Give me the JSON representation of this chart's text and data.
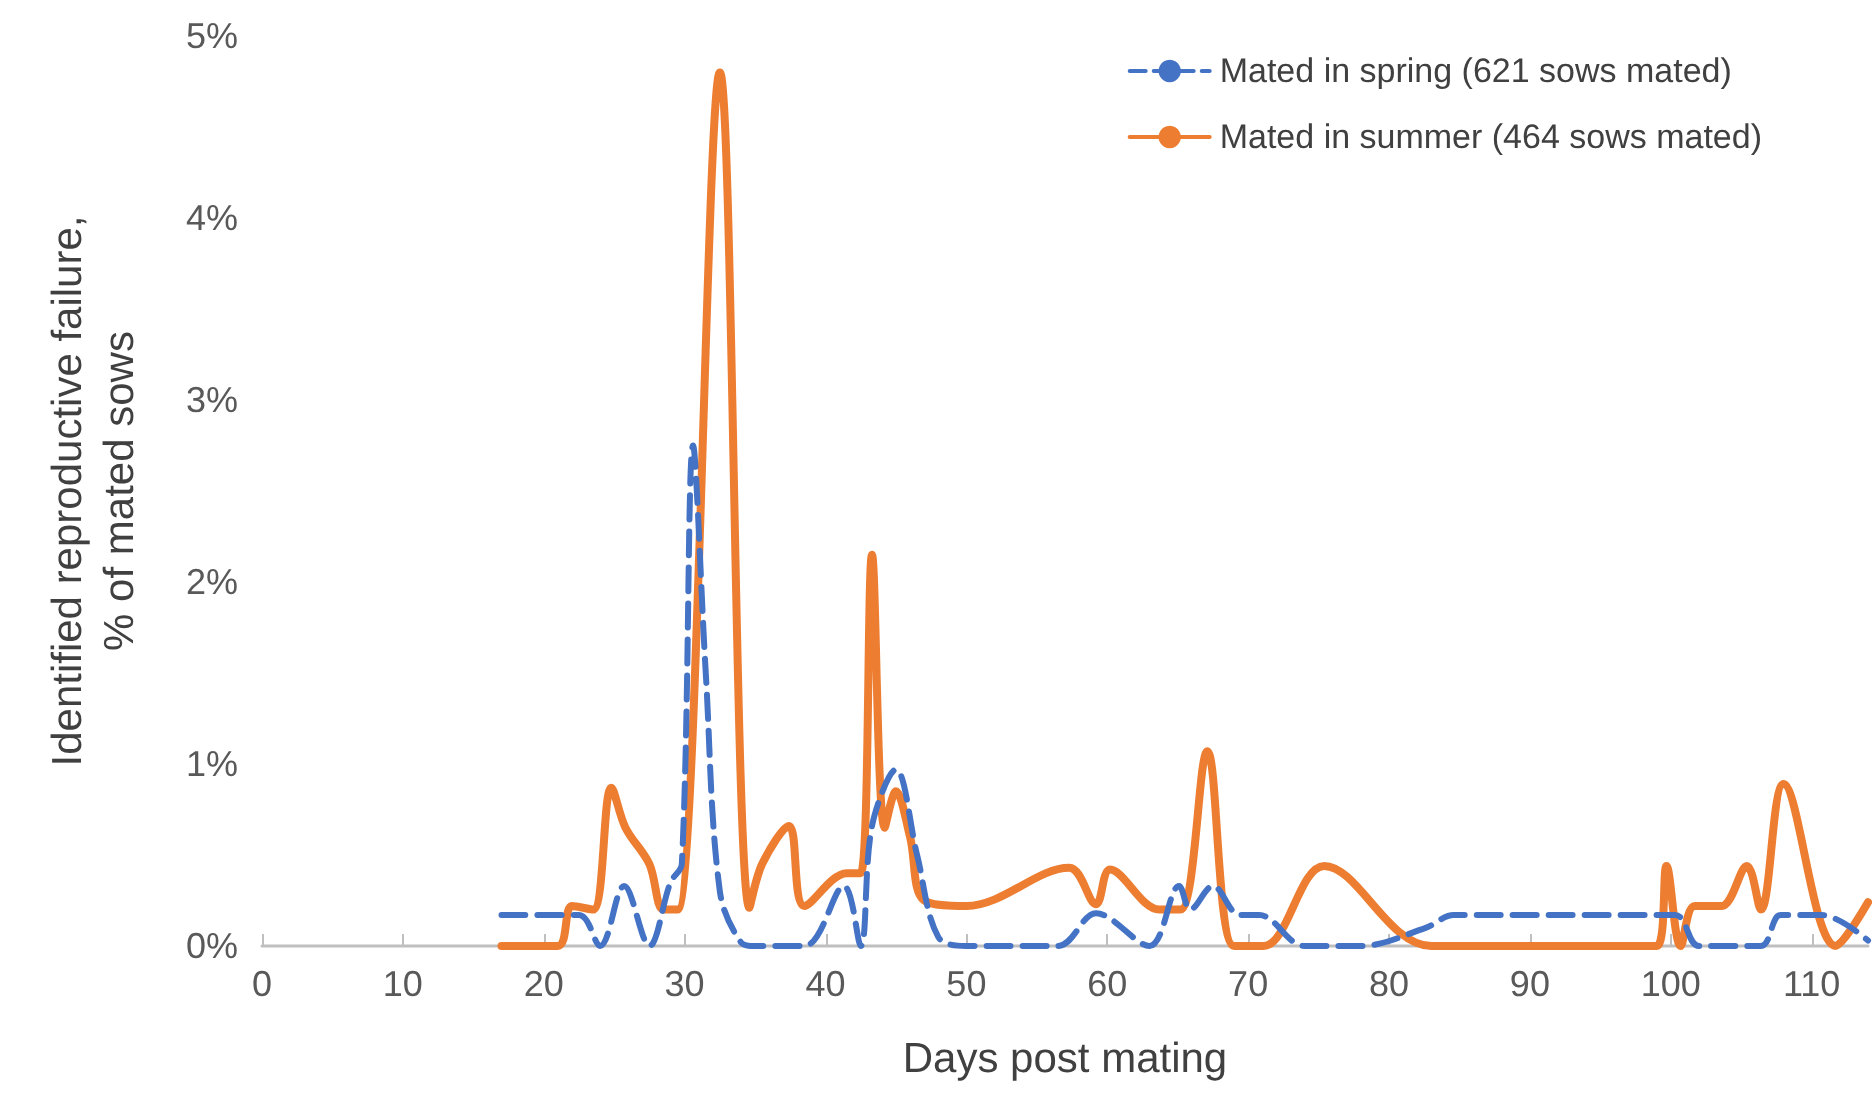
{
  "chart_data": {
    "type": "line",
    "xlabel": "Days post mating",
    "ylabel": "Identified reproductive failure,\n% of mated sows",
    "xlim": [
      0,
      114
    ],
    "xticks": [
      0,
      10,
      20,
      30,
      40,
      50,
      60,
      70,
      80,
      90,
      100,
      110
    ],
    "ylim": [
      0,
      5
    ],
    "yticks": [
      {
        "value": 0,
        "label": "0%"
      },
      {
        "value": 1,
        "label": "1%"
      },
      {
        "value": 2,
        "label": "2%"
      },
      {
        "value": 3,
        "label": "3%"
      },
      {
        "value": 4,
        "label": "4%"
      },
      {
        "value": 5,
        "label": "5%"
      }
    ],
    "grid": false,
    "legend": "top right",
    "marker": "none",
    "series": [
      {
        "name": "Mated in spring (621 sows mated)",
        "color": "#4472c4",
        "line_style": "dashed",
        "x": [
          17,
          22.5,
          24,
          25.7,
          27.5,
          29,
          29.8,
          30.6,
          31.5,
          32.5,
          34,
          35,
          38.5,
          41.3,
          42.5,
          43.3,
          45,
          46.5,
          48,
          50,
          56.5,
          59.2,
          63,
          65.1,
          65.9,
          67.5,
          69.4,
          70.8,
          74,
          78,
          82.6,
          84.6,
          100.3,
          102,
          106.4,
          107.8,
          110.7,
          114
        ],
        "values": [
          0.17,
          0.17,
          0,
          0.33,
          0,
          0.35,
          0.45,
          2.75,
          1.5,
          0.3,
          0.02,
          0,
          0,
          0.33,
          0,
          0.66,
          0.97,
          0.5,
          0.05,
          0,
          0,
          0.18,
          0,
          0.33,
          0.2,
          0.33,
          0.17,
          0.17,
          0,
          0,
          0.1,
          0.17,
          0.17,
          0,
          0,
          0.17,
          0.17,
          0.03
        ]
      },
      {
        "name": "Mated in summer (464 sows mated)",
        "color": "#ed7d31",
        "line_style": "solid",
        "x": [
          17,
          21,
          22,
          23.5,
          24.8,
          25.8,
          27.5,
          28.5,
          29.5,
          32.5,
          34.6,
          35.5,
          37.4,
          38.5,
          41.5,
          42.5,
          43.3,
          44.2,
          45,
          46,
          47,
          50,
          57.3,
          59.2,
          60.2,
          63.7,
          65.2,
          67.1,
          69,
          71.1,
          75.4,
          83,
          99,
          99.7,
          100.7,
          101.7,
          103.6,
          105.4,
          106.4,
          108,
          111.7,
          114
        ],
        "values": [
          0,
          0,
          0.22,
          0.2,
          0.87,
          0.65,
          0.45,
          0.2,
          0.2,
          4.8,
          0.21,
          0.45,
          0.66,
          0.22,
          0.4,
          0.4,
          2.15,
          0.65,
          0.85,
          0.6,
          0.25,
          0.22,
          0.43,
          0.23,
          0.42,
          0.2,
          0.2,
          1.07,
          0,
          0,
          0.44,
          0,
          0,
          0.44,
          0,
          0.22,
          0.22,
          0.44,
          0.2,
          0.89,
          0,
          0.24
        ]
      }
    ]
  }
}
